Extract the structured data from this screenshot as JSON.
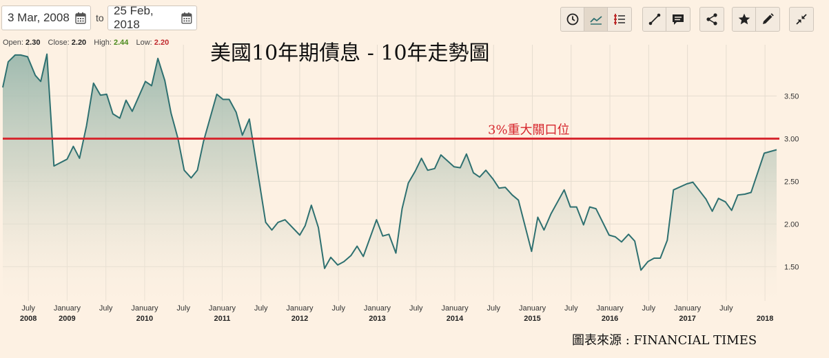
{
  "date_range": {
    "from": "3 Mar, 2008",
    "to_label": "to",
    "to": "25 Feb, 2018"
  },
  "toolbar": {
    "groups": [
      [
        "clock-icon",
        "line-chart-icon",
        "list-settings-icon"
      ],
      [
        "draw-line-icon",
        "comment-icon"
      ],
      [
        "share-icon"
      ],
      [
        "star-icon",
        "pencil-icon"
      ],
      [
        "collapse-icon"
      ]
    ]
  },
  "ohlc": {
    "open_label": "Open:",
    "open": "2.30",
    "close_label": "Close:",
    "close": "2.20",
    "high_label": "High:",
    "high": "2.44",
    "low_label": "Low:",
    "low": "2.20"
  },
  "source": "圖表來源 : FINANCIAL TIMES",
  "colors": {
    "background": "#fdf1e3",
    "line": "#2e7070",
    "threshold": "#d6262d",
    "grid": "#e5dccf"
  },
  "chart_data": {
    "type": "area",
    "title": "美國10年期債息 - 10年走勢圖",
    "ylim": [
      1.1,
      4.1
    ],
    "yticks": [
      1.5,
      2.0,
      2.5,
      3.0,
      3.5
    ],
    "ytick_labels": [
      "1.50",
      "2.00",
      "2.50",
      "3.00",
      "3.50"
    ],
    "grid": true,
    "x_range": [
      2008.17,
      2018.15
    ],
    "xticks": [
      {
        "x": 2008.5,
        "label": "July",
        "year": "2008"
      },
      {
        "x": 2009.0,
        "label": "January",
        "year": "2009"
      },
      {
        "x": 2009.5,
        "label": "July",
        "year": ""
      },
      {
        "x": 2010.0,
        "label": "January",
        "year": "2010"
      },
      {
        "x": 2010.5,
        "label": "July",
        "year": ""
      },
      {
        "x": 2011.0,
        "label": "January",
        "year": "2011"
      },
      {
        "x": 2011.5,
        "label": "July",
        "year": ""
      },
      {
        "x": 2012.0,
        "label": "January",
        "year": "2012"
      },
      {
        "x": 2012.5,
        "label": "July",
        "year": ""
      },
      {
        "x": 2013.0,
        "label": "January",
        "year": "2013"
      },
      {
        "x": 2013.5,
        "label": "July",
        "year": ""
      },
      {
        "x": 2014.0,
        "label": "January",
        "year": "2014"
      },
      {
        "x": 2014.5,
        "label": "July",
        "year": ""
      },
      {
        "x": 2015.0,
        "label": "January",
        "year": "2015"
      },
      {
        "x": 2015.5,
        "label": "July",
        "year": ""
      },
      {
        "x": 2016.0,
        "label": "January",
        "year": "2016"
      },
      {
        "x": 2016.5,
        "label": "July",
        "year": ""
      },
      {
        "x": 2017.0,
        "label": "January",
        "year": "2017"
      },
      {
        "x": 2017.5,
        "label": "July",
        "year": ""
      },
      {
        "x": 2018.0,
        "label": "",
        "year": "2018"
      }
    ],
    "threshold": {
      "value": 3.0,
      "label": "3%重大關口位"
    },
    "series": [
      {
        "name": "",
        "points": [
          [
            2008.17,
            3.6
          ],
          [
            2008.24,
            3.9
          ],
          [
            2008.33,
            3.98
          ],
          [
            2008.4,
            3.98
          ],
          [
            2008.49,
            3.96
          ],
          [
            2008.59,
            3.74
          ],
          [
            2008.66,
            3.67
          ],
          [
            2008.74,
            3.99
          ],
          [
            2008.83,
            2.68
          ],
          [
            2009.0,
            2.76
          ],
          [
            2009.08,
            2.91
          ],
          [
            2009.16,
            2.77
          ],
          [
            2009.25,
            3.15
          ],
          [
            2009.34,
            3.65
          ],
          [
            2009.43,
            3.51
          ],
          [
            2009.51,
            3.52
          ],
          [
            2009.59,
            3.29
          ],
          [
            2009.68,
            3.24
          ],
          [
            2009.76,
            3.45
          ],
          [
            2009.84,
            3.32
          ],
          [
            2010.01,
            3.67
          ],
          [
            2010.09,
            3.62
          ],
          [
            2010.17,
            3.94
          ],
          [
            2010.26,
            3.68
          ],
          [
            2010.34,
            3.3
          ],
          [
            2010.43,
            3.0
          ],
          [
            2010.51,
            2.63
          ],
          [
            2010.6,
            2.54
          ],
          [
            2010.68,
            2.63
          ],
          [
            2010.76,
            2.97
          ],
          [
            2010.93,
            3.52
          ],
          [
            2011.01,
            3.46
          ],
          [
            2011.09,
            3.46
          ],
          [
            2011.18,
            3.31
          ],
          [
            2011.26,
            3.04
          ],
          [
            2011.35,
            3.23
          ],
          [
            2011.56,
            2.02
          ],
          [
            2011.64,
            1.93
          ],
          [
            2011.72,
            2.02
          ],
          [
            2011.81,
            2.05
          ],
          [
            2012.0,
            1.87
          ],
          [
            2012.07,
            1.98
          ],
          [
            2012.15,
            2.22
          ],
          [
            2012.24,
            1.96
          ],
          [
            2012.32,
            1.48
          ],
          [
            2012.4,
            1.61
          ],
          [
            2012.49,
            1.52
          ],
          [
            2012.57,
            1.56
          ],
          [
            2012.66,
            1.63
          ],
          [
            2012.74,
            1.74
          ],
          [
            2012.82,
            1.62
          ],
          [
            2012.99,
            2.05
          ],
          [
            2013.07,
            1.86
          ],
          [
            2013.15,
            1.88
          ],
          [
            2013.24,
            1.66
          ],
          [
            2013.32,
            2.18
          ],
          [
            2013.4,
            2.48
          ],
          [
            2013.49,
            2.62
          ],
          [
            2013.57,
            2.77
          ],
          [
            2013.65,
            2.63
          ],
          [
            2013.74,
            2.65
          ],
          [
            2013.82,
            2.81
          ],
          [
            2013.99,
            2.67
          ],
          [
            2014.07,
            2.66
          ],
          [
            2014.15,
            2.82
          ],
          [
            2014.24,
            2.6
          ],
          [
            2014.32,
            2.55
          ],
          [
            2014.4,
            2.63
          ],
          [
            2014.49,
            2.53
          ],
          [
            2014.57,
            2.42
          ],
          [
            2014.65,
            2.43
          ],
          [
            2014.74,
            2.34
          ],
          [
            2014.82,
            2.28
          ],
          [
            2014.99,
            1.68
          ],
          [
            2015.07,
            2.08
          ],
          [
            2015.15,
            1.93
          ],
          [
            2015.24,
            2.12
          ],
          [
            2015.41,
            2.4
          ],
          [
            2015.49,
            2.2
          ],
          [
            2015.57,
            2.2
          ],
          [
            2015.66,
            1.99
          ],
          [
            2015.74,
            2.2
          ],
          [
            2015.82,
            2.18
          ],
          [
            2015.99,
            1.87
          ],
          [
            2016.07,
            1.85
          ],
          [
            2016.15,
            1.79
          ],
          [
            2016.24,
            1.88
          ],
          [
            2016.32,
            1.8
          ],
          [
            2016.4,
            1.46
          ],
          [
            2016.49,
            1.56
          ],
          [
            2016.57,
            1.6
          ],
          [
            2016.65,
            1.6
          ],
          [
            2016.74,
            1.81
          ],
          [
            2016.82,
            2.4
          ],
          [
            2016.99,
            2.47
          ],
          [
            2017.07,
            2.49
          ],
          [
            2017.24,
            2.29
          ],
          [
            2017.32,
            2.15
          ],
          [
            2017.4,
            2.3
          ],
          [
            2017.49,
            2.26
          ],
          [
            2017.57,
            2.16
          ],
          [
            2017.65,
            2.34
          ],
          [
            2017.74,
            2.35
          ],
          [
            2017.82,
            2.37
          ],
          [
            2017.99,
            2.83
          ],
          [
            2018.15,
            2.87
          ]
        ]
      }
    ]
  }
}
